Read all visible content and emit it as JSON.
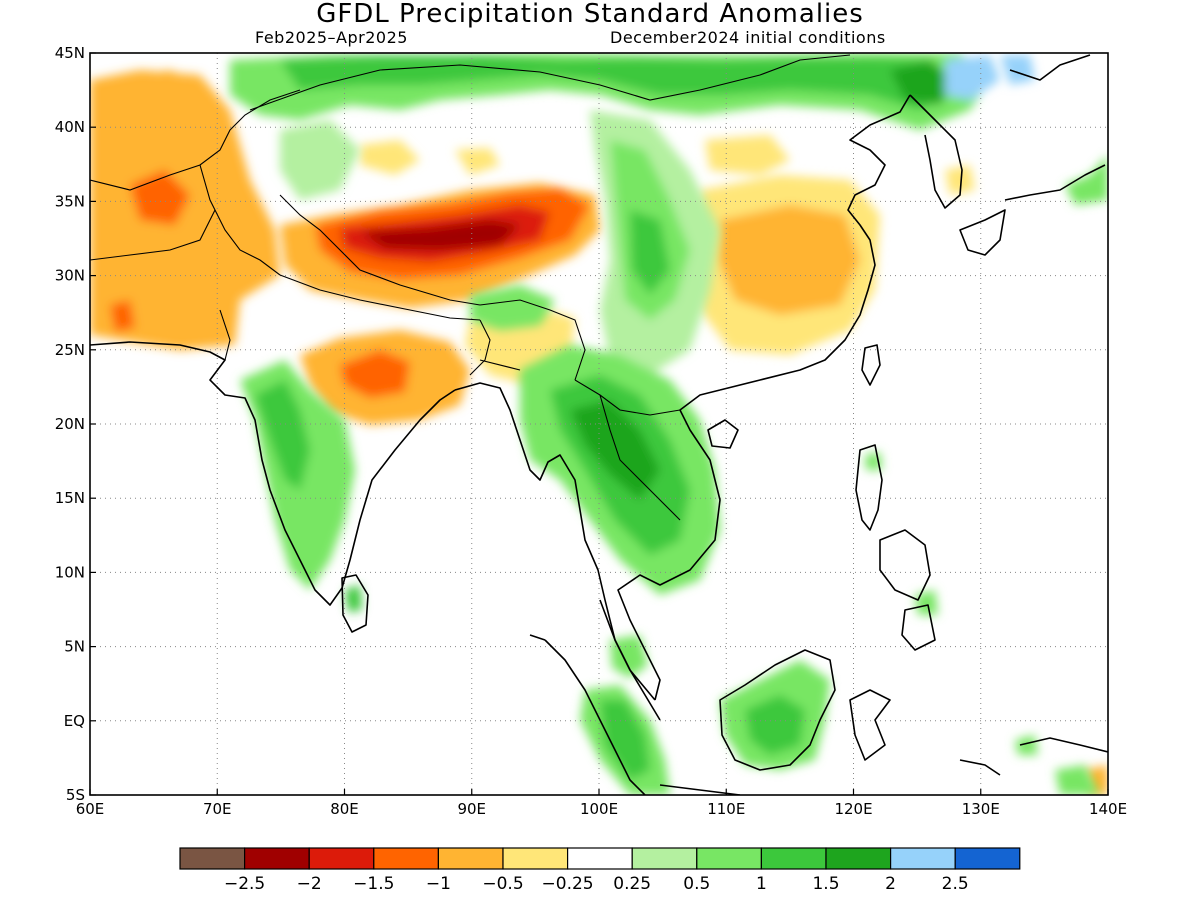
{
  "title": "GFDL Precipitation Standard Anomalies",
  "subtitle_left": "Feb2025–Apr2025",
  "subtitle_right": "December2024 initial conditions",
  "map": {
    "lon_range": [
      60,
      140
    ],
    "lat_range": [
      -5,
      45
    ],
    "lon_ticks": [
      {
        "value": 60,
        "label": "60E"
      },
      {
        "value": 70,
        "label": "70E"
      },
      {
        "value": 80,
        "label": "80E"
      },
      {
        "value": 90,
        "label": "90E"
      },
      {
        "value": 100,
        "label": "100E"
      },
      {
        "value": 110,
        "label": "110E"
      },
      {
        "value": 120,
        "label": "120E"
      },
      {
        "value": 130,
        "label": "130E"
      },
      {
        "value": 140,
        "label": "140E"
      }
    ],
    "lat_ticks": [
      {
        "value": 45,
        "label": "45N"
      },
      {
        "value": 40,
        "label": "40N"
      },
      {
        "value": 35,
        "label": "35N"
      },
      {
        "value": 30,
        "label": "30N"
      },
      {
        "value": 25,
        "label": "25N"
      },
      {
        "value": 20,
        "label": "20N"
      },
      {
        "value": 15,
        "label": "15N"
      },
      {
        "value": 10,
        "label": "10N"
      },
      {
        "value": 5,
        "label": "5N"
      },
      {
        "value": 0,
        "label": "EQ"
      },
      {
        "value": -5,
        "label": "5S"
      }
    ],
    "grid": "dotted"
  },
  "colorbar": {
    "colors": [
      "#7a5543",
      "#a00000",
      "#dc1b0a",
      "#ff6400",
      "#ffb432",
      "#ffe678",
      "#ffffff",
      "#b4f0a0",
      "#78e664",
      "#3cc83c",
      "#1ea51e",
      "#96d2fa",
      "#1464d2"
    ],
    "labels": [
      "−2.5",
      "−2",
      "−1.5",
      "−1",
      "−0.5",
      "−0.25",
      "0.25",
      "0.5",
      "1",
      "1.5",
      "2",
      "2.5"
    ]
  }
}
